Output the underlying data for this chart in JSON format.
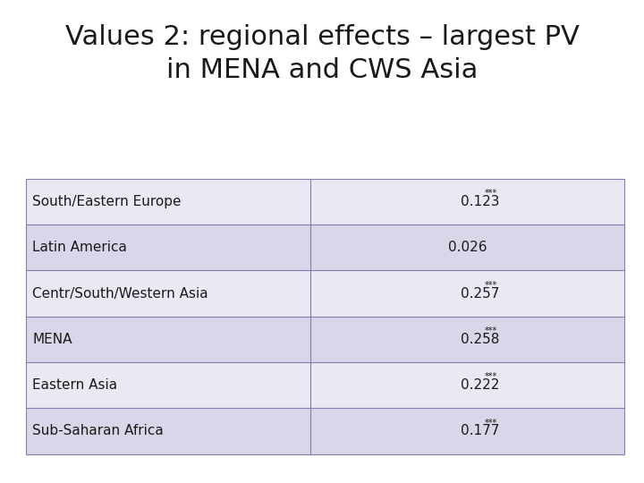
{
  "title_line1": "Values 2: regional effects – largest PV",
  "title_line2": "in MENA and CWS Asia",
  "title_fontsize": 22,
  "background_color": "#ffffff",
  "table_rows": [
    [
      "South/Eastern Europe",
      "0.123",
      "***"
    ],
    [
      "Latin America",
      "0.026",
      ""
    ],
    [
      "Centr/South/Western Asia",
      "0.257",
      "***"
    ],
    [
      "MENA",
      "0.258",
      "***"
    ],
    [
      "Eastern Asia",
      "0.222",
      "***"
    ],
    [
      "Sub-Saharan Africa",
      "0.177",
      "***"
    ]
  ],
  "row_color_light": "#eae8f2",
  "row_color_dark": "#d8d6e8",
  "border_color": "#8080b0",
  "text_color": "#1a1a1a",
  "cell_fontsize": 11,
  "star_fontsize": 7
}
